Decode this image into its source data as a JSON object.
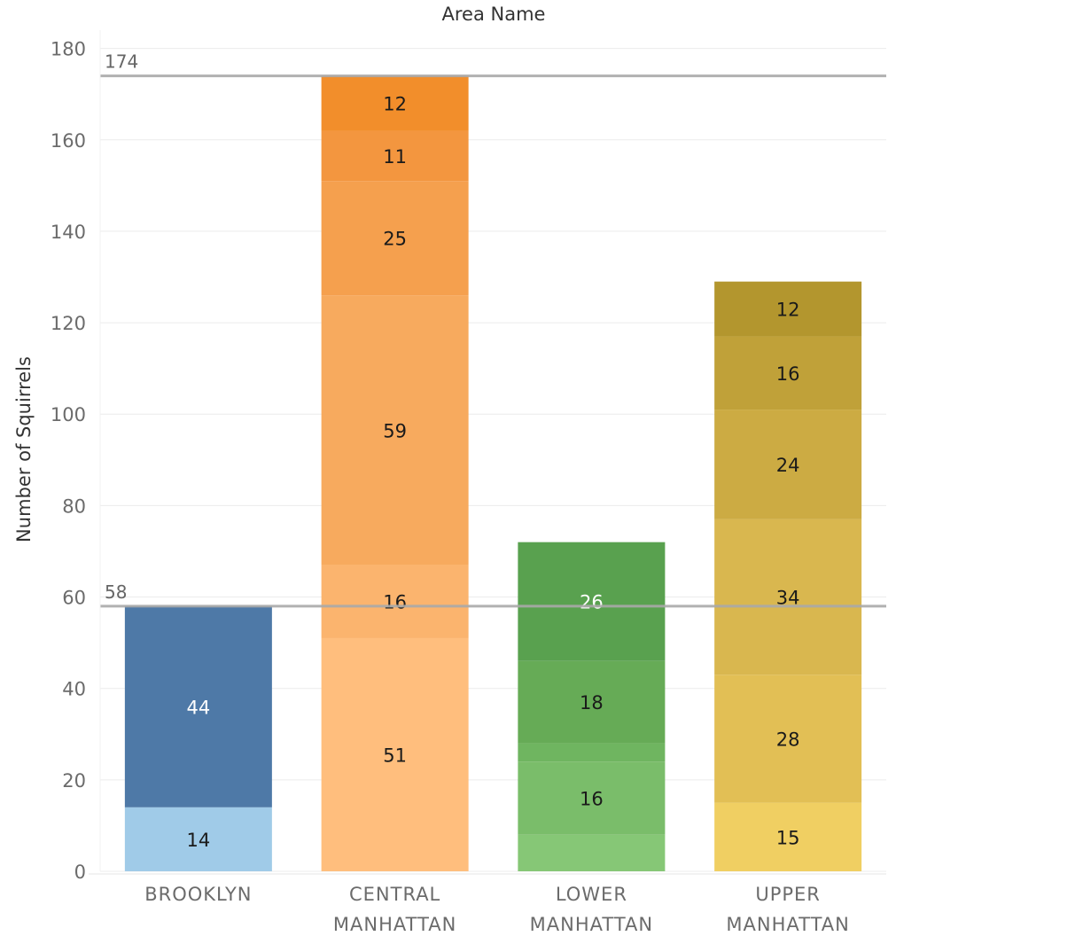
{
  "chart_data": {
    "type": "bar",
    "stacked": true,
    "title": "Area Name",
    "xlabel": "",
    "ylabel": "Number of Squirrels",
    "ylim": [
      0,
      184
    ],
    "yticks": [
      0,
      20,
      40,
      60,
      80,
      100,
      120,
      140,
      160,
      180
    ],
    "grid": true,
    "categories": [
      {
        "lines": [
          "BROOKLYN"
        ]
      },
      {
        "lines": [
          "CENTRAL",
          "MANHATTAN"
        ]
      },
      {
        "lines": [
          "LOWER",
          "MANHATTAN"
        ]
      },
      {
        "lines": [
          "UPPER",
          "MANHATTAN"
        ]
      }
    ],
    "bars": [
      {
        "category": "BROOKLYN",
        "segments": [
          {
            "value": 14,
            "label": "14",
            "color": "#a0cbe8",
            "text_color": "#1a1a1a"
          },
          {
            "value": 44,
            "label": "44",
            "color": "#4e79a7",
            "text_color": "#ffffff"
          }
        ]
      },
      {
        "category": "CENTRAL MANHATTAN",
        "segments": [
          {
            "value": 51,
            "label": "51",
            "color": "#ffbe7d",
            "text_color": "#1a1a1a"
          },
          {
            "value": 16,
            "label": "16",
            "color": "#fbb46e",
            "text_color": "#1a1a1a"
          },
          {
            "value": 59,
            "label": "59",
            "color": "#f7aa5e",
            "text_color": "#1a1a1a"
          },
          {
            "value": 25,
            "label": "25",
            "color": "#f5a04e",
            "text_color": "#1a1a1a"
          },
          {
            "value": 11,
            "label": "11",
            "color": "#f3963f",
            "text_color": "#1a1a1a"
          },
          {
            "value": 12,
            "label": "12",
            "color": "#f28e2b",
            "text_color": "#1a1a1a"
          }
        ]
      },
      {
        "category": "LOWER MANHATTAN",
        "segments": [
          {
            "value": 8,
            "label": "",
            "color": "#86c776",
            "text_color": "#1a1a1a"
          },
          {
            "value": 16,
            "label": "16",
            "color": "#7abd6a",
            "text_color": "#1a1a1a"
          },
          {
            "value": 4,
            "label": "",
            "color": "#6fb560",
            "text_color": "#1a1a1a"
          },
          {
            "value": 18,
            "label": "18",
            "color": "#66ab56",
            "text_color": "#1a1a1a"
          },
          {
            "value": 26,
            "label": "26",
            "color": "#59a14f",
            "text_color": "#ffffff"
          }
        ]
      },
      {
        "category": "UPPER MANHATTAN",
        "segments": [
          {
            "value": 15,
            "label": "15",
            "color": "#f0cf62",
            "text_color": "#1a1a1a"
          },
          {
            "value": 28,
            "label": "28",
            "color": "#e2bf55",
            "text_color": "#1a1a1a"
          },
          {
            "value": 34,
            "label": "34",
            "color": "#d9b74f",
            "text_color": "#1a1a1a"
          },
          {
            "value": 24,
            "label": "24",
            "color": "#ccab43",
            "text_color": "#1a1a1a"
          },
          {
            "value": 16,
            "label": "16",
            "color": "#c0a139",
            "text_color": "#1a1a1a"
          },
          {
            "value": 12,
            "label": "12",
            "color": "#b3962e",
            "text_color": "#1a1a1a"
          }
        ]
      }
    ],
    "reference_lines": [
      {
        "value": 174,
        "label": "174"
      },
      {
        "value": 58,
        "label": "58"
      }
    ],
    "colors": {
      "gridline": "#ececec",
      "reference_line": "#a8a8a8",
      "axis_text": "#6b6b6b"
    }
  }
}
